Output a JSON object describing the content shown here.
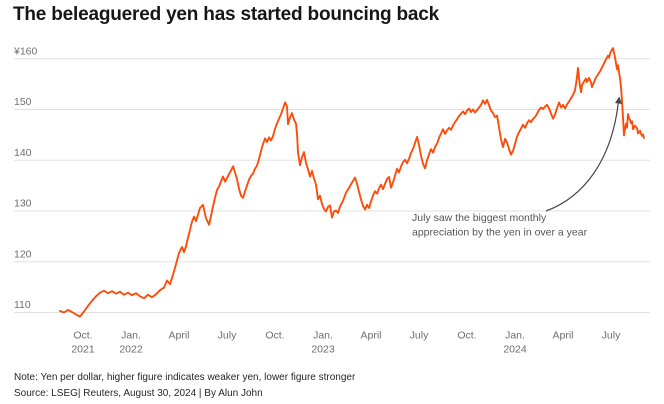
{
  "title": "The beleaguered yen has started bouncing back",
  "footer": {
    "note": "Note: Yen per dollar, higher figure indicates weaker yen, lower figure stronger",
    "source": "Source: LSEG| Reuters, August 30, 2024 | By Alun John"
  },
  "chart_data": {
    "type": "line",
    "title": "The beleaguered yen has started bouncing back",
    "ylabel": "Yen per dollar",
    "xlabel": "",
    "x_unit": "months since 2021-10-01",
    "ylim": [
      108,
      163
    ],
    "grid": "horizontal",
    "legend": "none",
    "line_color": "#fa4e0d",
    "gridline_color": "#e2e2e2",
    "arrow_color": "#474747",
    "y_ticks": [
      {
        "value": 160,
        "label": "¥160"
      },
      {
        "value": 150,
        "label": "150"
      },
      {
        "value": 140,
        "label": "140"
      },
      {
        "value": 130,
        "label": "130"
      },
      {
        "value": 120,
        "label": "120"
      },
      {
        "value": 110,
        "label": "110"
      }
    ],
    "x_ticks": [
      {
        "t": 0,
        "label": "Oct.",
        "sublabel": "2021"
      },
      {
        "t": 3,
        "label": "Jan.",
        "sublabel": "2022"
      },
      {
        "t": 6,
        "label": "April"
      },
      {
        "t": 9,
        "label": "July"
      },
      {
        "t": 12,
        "label": "Oct."
      },
      {
        "t": 15,
        "label": "Jan.",
        "sublabel": "2023"
      },
      {
        "t": 18,
        "label": "April"
      },
      {
        "t": 21,
        "label": "July"
      },
      {
        "t": 24,
        "label": "Oct."
      },
      {
        "t": 27,
        "label": "Jan.",
        "sublabel": "2024"
      },
      {
        "t": 30,
        "label": "April"
      },
      {
        "t": 33,
        "label": "July"
      }
    ],
    "annotation": {
      "lines": [
        "July saw the biggest monthly",
        "appreciation by the yen in over a year"
      ]
    },
    "series": [
      {
        "name": "Yen per dollar",
        "points": [
          [
            -1.44,
            110.3
          ],
          [
            -1.19,
            110.0
          ],
          [
            -0.94,
            110.5
          ],
          [
            -0.69,
            110.1
          ],
          [
            -0.44,
            109.6
          ],
          [
            -0.19,
            109.2
          ],
          [
            0.06,
            110.2
          ],
          [
            0.31,
            111.3
          ],
          [
            0.56,
            112.3
          ],
          [
            0.81,
            113.2
          ],
          [
            1.06,
            113.9
          ],
          [
            1.31,
            114.3
          ],
          [
            1.56,
            113.8
          ],
          [
            1.81,
            114.2
          ],
          [
            2.06,
            113.7
          ],
          [
            2.31,
            114.1
          ],
          [
            2.56,
            113.5
          ],
          [
            2.81,
            113.9
          ],
          [
            3.06,
            113.4
          ],
          [
            3.31,
            113.8
          ],
          [
            3.56,
            113.2
          ],
          [
            3.81,
            112.8
          ],
          [
            4.06,
            113.5
          ],
          [
            4.31,
            113.0
          ],
          [
            4.56,
            113.6
          ],
          [
            4.81,
            114.4
          ],
          [
            5.06,
            114.9
          ],
          [
            5.25,
            116.3
          ],
          [
            5.44,
            115.6
          ],
          [
            5.63,
            117.5
          ],
          [
            5.81,
            119.5
          ],
          [
            6.0,
            121.7
          ],
          [
            6.19,
            122.9
          ],
          [
            6.31,
            121.9
          ],
          [
            6.44,
            123.0
          ],
          [
            6.56,
            124.7
          ],
          [
            6.69,
            126.3
          ],
          [
            6.81,
            127.9
          ],
          [
            6.94,
            128.9
          ],
          [
            7.06,
            128.0
          ],
          [
            7.19,
            129.3
          ],
          [
            7.31,
            130.6
          ],
          [
            7.5,
            131.2
          ],
          [
            7.69,
            128.6
          ],
          [
            7.88,
            127.3
          ],
          [
            8.0,
            129.0
          ],
          [
            8.13,
            131.0
          ],
          [
            8.25,
            132.6
          ],
          [
            8.38,
            134.2
          ],
          [
            8.5,
            134.8
          ],
          [
            8.63,
            135.9
          ],
          [
            8.75,
            136.8
          ],
          [
            8.88,
            135.8
          ],
          [
            9.0,
            136.5
          ],
          [
            9.13,
            137.3
          ],
          [
            9.25,
            138.0
          ],
          [
            9.38,
            138.8
          ],
          [
            9.5,
            137.6
          ],
          [
            9.63,
            136.2
          ],
          [
            9.75,
            134.4
          ],
          [
            9.88,
            133.0
          ],
          [
            10.0,
            132.6
          ],
          [
            10.13,
            133.9
          ],
          [
            10.25,
            135.0
          ],
          [
            10.38,
            136.2
          ],
          [
            10.5,
            136.9
          ],
          [
            10.63,
            137.4
          ],
          [
            10.75,
            138.3
          ],
          [
            10.88,
            139.0
          ],
          [
            11.0,
            140.2
          ],
          [
            11.13,
            141.9
          ],
          [
            11.25,
            143.2
          ],
          [
            11.38,
            144.3
          ],
          [
            11.5,
            143.6
          ],
          [
            11.63,
            144.5
          ],
          [
            11.75,
            143.9
          ],
          [
            11.88,
            144.8
          ],
          [
            12.0,
            146.2
          ],
          [
            12.13,
            147.3
          ],
          [
            12.25,
            148.2
          ],
          [
            12.38,
            149.1
          ],
          [
            12.5,
            150.2
          ],
          [
            12.63,
            151.4
          ],
          [
            12.75,
            150.6
          ],
          [
            12.81,
            147.1
          ],
          [
            12.94,
            148.4
          ],
          [
            13.06,
            149.3
          ],
          [
            13.19,
            148.0
          ],
          [
            13.31,
            147.2
          ],
          [
            13.38,
            145.0
          ],
          [
            13.44,
            141.5
          ],
          [
            13.56,
            139.0
          ],
          [
            13.69,
            140.6
          ],
          [
            13.81,
            141.6
          ],
          [
            13.94,
            139.5
          ],
          [
            14.06,
            138.2
          ],
          [
            14.19,
            136.8
          ],
          [
            14.31,
            137.9
          ],
          [
            14.44,
            136.4
          ],
          [
            14.56,
            135.2
          ],
          [
            14.69,
            132.3
          ],
          [
            14.81,
            133.0
          ],
          [
            14.94,
            131.4
          ],
          [
            15.06,
            130.4
          ],
          [
            15.19,
            129.9
          ],
          [
            15.31,
            130.8
          ],
          [
            15.44,
            131.1
          ],
          [
            15.56,
            128.7
          ],
          [
            15.69,
            129.9
          ],
          [
            15.81,
            130.1
          ],
          [
            15.94,
            129.6
          ],
          [
            16.06,
            130.9
          ],
          [
            16.25,
            132.0
          ],
          [
            16.44,
            133.6
          ],
          [
            16.63,
            134.6
          ],
          [
            16.81,
            135.6
          ],
          [
            17.0,
            136.6
          ],
          [
            17.13,
            135.3
          ],
          [
            17.25,
            133.8
          ],
          [
            17.38,
            132.2
          ],
          [
            17.5,
            131.0
          ],
          [
            17.63,
            130.3
          ],
          [
            17.75,
            131.2
          ],
          [
            17.88,
            130.6
          ],
          [
            18.0,
            131.9
          ],
          [
            18.13,
            133.1
          ],
          [
            18.25,
            133.9
          ],
          [
            18.38,
            133.4
          ],
          [
            18.5,
            134.5
          ],
          [
            18.63,
            135.2
          ],
          [
            18.75,
            134.3
          ],
          [
            18.88,
            135.4
          ],
          [
            19.0,
            136.3
          ],
          [
            19.13,
            136.7
          ],
          [
            19.25,
            134.6
          ],
          [
            19.38,
            135.7
          ],
          [
            19.5,
            137.0
          ],
          [
            19.63,
            138.3
          ],
          [
            19.75,
            137.6
          ],
          [
            19.88,
            138.8
          ],
          [
            20.0,
            139.6
          ],
          [
            20.13,
            140.1
          ],
          [
            20.25,
            139.4
          ],
          [
            20.38,
            140.3
          ],
          [
            20.5,
            141.4
          ],
          [
            20.63,
            142.3
          ],
          [
            20.75,
            143.4
          ],
          [
            20.88,
            144.6
          ],
          [
            21.0,
            143.0
          ],
          [
            21.13,
            140.8
          ],
          [
            21.25,
            139.3
          ],
          [
            21.38,
            138.4
          ],
          [
            21.5,
            140.0
          ],
          [
            21.63,
            141.2
          ],
          [
            21.75,
            142.2
          ],
          [
            21.88,
            141.5
          ],
          [
            22.0,
            142.6
          ],
          [
            22.13,
            143.3
          ],
          [
            22.25,
            144.4
          ],
          [
            22.38,
            145.3
          ],
          [
            22.5,
            146.1
          ],
          [
            22.63,
            145.2
          ],
          [
            22.75,
            145.9
          ],
          [
            22.88,
            146.4
          ],
          [
            23.0,
            146.0
          ],
          [
            23.13,
            146.9
          ],
          [
            23.25,
            147.5
          ],
          [
            23.38,
            148.1
          ],
          [
            23.5,
            148.7
          ],
          [
            23.63,
            149.2
          ],
          [
            23.75,
            149.6
          ],
          [
            23.88,
            149.1
          ],
          [
            24.0,
            149.8
          ],
          [
            24.13,
            150.2
          ],
          [
            24.25,
            149.5
          ],
          [
            24.38,
            150.0
          ],
          [
            24.5,
            149.4
          ],
          [
            24.63,
            149.9
          ],
          [
            24.75,
            150.4
          ],
          [
            24.88,
            150.9
          ],
          [
            25.0,
            151.8
          ],
          [
            25.13,
            151.1
          ],
          [
            25.25,
            151.9
          ],
          [
            25.38,
            150.8
          ],
          [
            25.5,
            149.8
          ],
          [
            25.63,
            149.3
          ],
          [
            25.75,
            148.5
          ],
          [
            25.88,
            148.8
          ],
          [
            26.0,
            146.5
          ],
          [
            26.13,
            144.0
          ],
          [
            26.25,
            142.6
          ],
          [
            26.38,
            144.2
          ],
          [
            26.5,
            143.5
          ],
          [
            26.63,
            142.2
          ],
          [
            26.75,
            141.1
          ],
          [
            26.88,
            141.9
          ],
          [
            27.0,
            143.2
          ],
          [
            27.13,
            144.7
          ],
          [
            27.25,
            145.5
          ],
          [
            27.38,
            146.3
          ],
          [
            27.5,
            147.0
          ],
          [
            27.63,
            146.4
          ],
          [
            27.75,
            147.3
          ],
          [
            27.88,
            147.9
          ],
          [
            28.0,
            147.5
          ],
          [
            28.13,
            148.2
          ],
          [
            28.25,
            148.5
          ],
          [
            28.38,
            149.2
          ],
          [
            28.5,
            149.9
          ],
          [
            28.63,
            150.4
          ],
          [
            28.75,
            150.1
          ],
          [
            28.88,
            150.6
          ],
          [
            29.0,
            150.9
          ],
          [
            29.13,
            150.2
          ],
          [
            29.25,
            149.2
          ],
          [
            29.38,
            148.2
          ],
          [
            29.5,
            149.0
          ],
          [
            29.63,
            150.3
          ],
          [
            29.75,
            151.4
          ],
          [
            29.88,
            150.4
          ],
          [
            30.0,
            150.9
          ],
          [
            30.13,
            150.2
          ],
          [
            30.25,
            151.0
          ],
          [
            30.38,
            151.6
          ],
          [
            30.5,
            152.2
          ],
          [
            30.63,
            152.9
          ],
          [
            30.75,
            153.8
          ],
          [
            30.81,
            155.0
          ],
          [
            30.88,
            156.5
          ],
          [
            30.94,
            158.2
          ],
          [
            31.0,
            156.2
          ],
          [
            31.06,
            154.6
          ],
          [
            31.13,
            153.4
          ],
          [
            31.19,
            154.8
          ],
          [
            31.31,
            155.5
          ],
          [
            31.44,
            156.1
          ],
          [
            31.5,
            155.4
          ],
          [
            31.63,
            156.2
          ],
          [
            31.75,
            155.3
          ],
          [
            31.81,
            154.4
          ],
          [
            31.94,
            155.4
          ],
          [
            32.06,
            156.3
          ],
          [
            32.19,
            156.9
          ],
          [
            32.31,
            157.5
          ],
          [
            32.44,
            158.3
          ],
          [
            32.56,
            159.1
          ],
          [
            32.69,
            159.9
          ],
          [
            32.81,
            160.6
          ],
          [
            32.88,
            160.2
          ],
          [
            32.94,
            161.0
          ],
          [
            33.06,
            161.8
          ],
          [
            33.13,
            162.1
          ],
          [
            33.19,
            161.2
          ],
          [
            33.25,
            160.3
          ],
          [
            33.31,
            159.1
          ],
          [
            33.38,
            157.9
          ],
          [
            33.44,
            158.7
          ],
          [
            33.5,
            157.3
          ],
          [
            33.56,
            156.2
          ],
          [
            33.63,
            154.2
          ],
          [
            33.69,
            151.8
          ],
          [
            33.75,
            148.4
          ],
          [
            33.81,
            144.9
          ],
          [
            33.88,
            146.3
          ],
          [
            33.94,
            147.2
          ],
          [
            34.0,
            146.4
          ],
          [
            34.06,
            149.1
          ],
          [
            34.13,
            148.2
          ],
          [
            34.19,
            148.0
          ],
          [
            34.25,
            147.3
          ],
          [
            34.31,
            147.7
          ],
          [
            34.38,
            146.1
          ],
          [
            34.5,
            146.8
          ],
          [
            34.63,
            146.3
          ],
          [
            34.69,
            145.3
          ],
          [
            34.81,
            145.8
          ],
          [
            34.88,
            145.2
          ],
          [
            34.94,
            144.8
          ],
          [
            35.0,
            145.1
          ],
          [
            35.06,
            144.4
          ]
        ]
      }
    ]
  }
}
